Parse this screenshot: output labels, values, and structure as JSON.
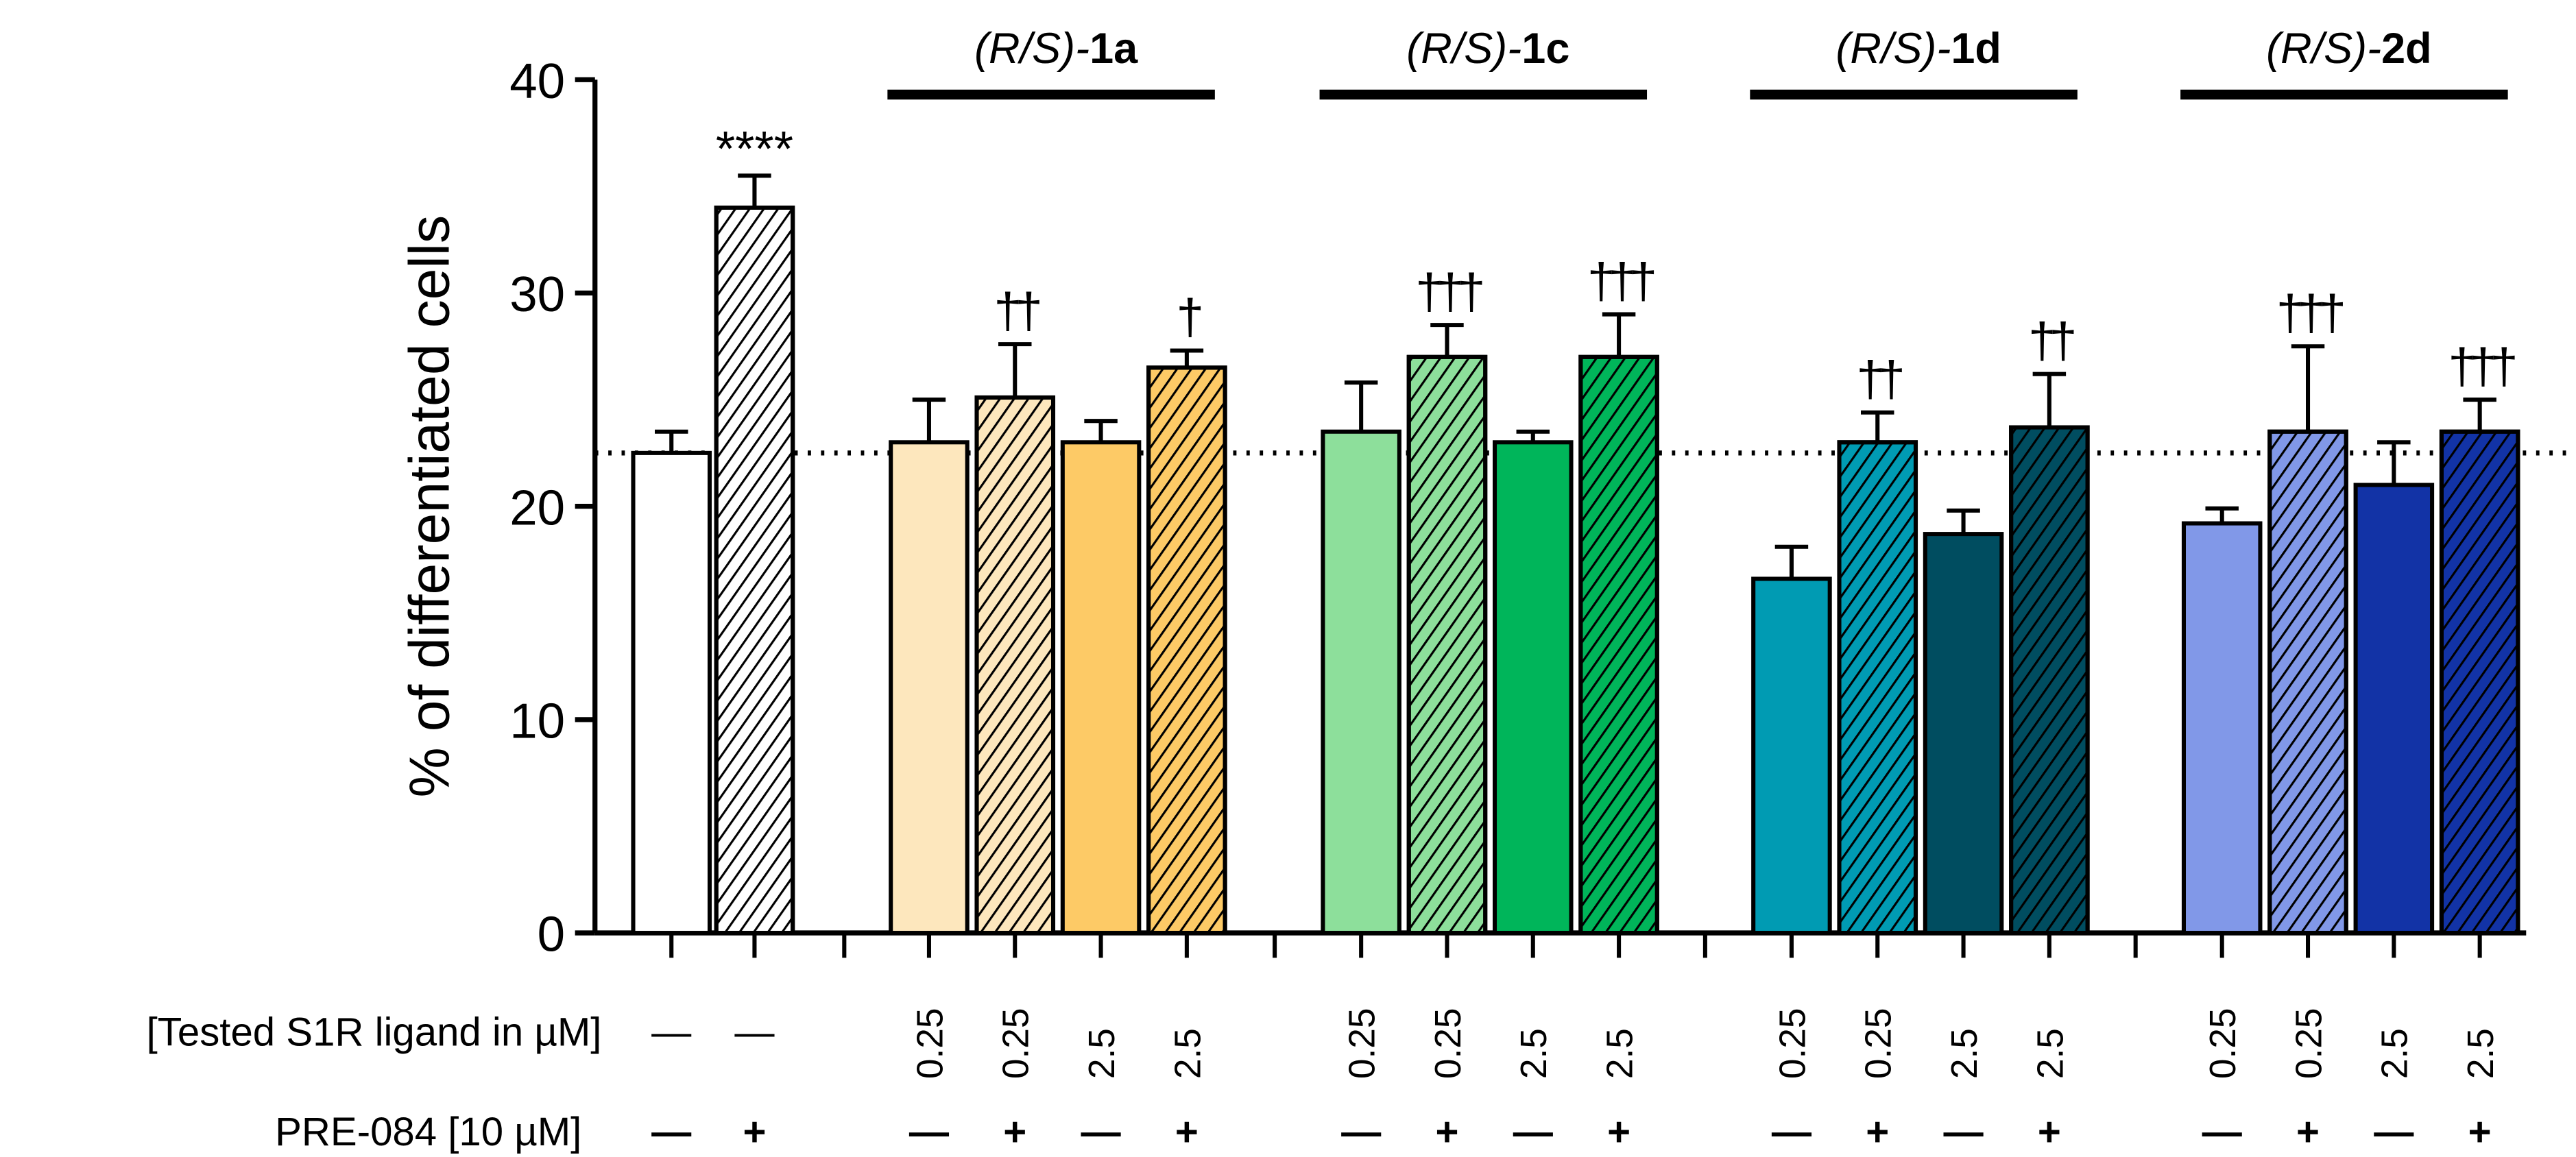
{
  "chart_data": {
    "type": "bar",
    "title": "",
    "xlabel": "",
    "ylabel": "% of differentiated cells",
    "ylim": [
      0,
      40
    ],
    "yticks": [
      "0",
      "10",
      "20",
      "30",
      "40"
    ],
    "reference_line": 22.5,
    "row_labels": {
      "ligand": "[Tested S1R ligand in µM]",
      "pre": "PRE-084 [10 µM]"
    },
    "groups": [
      {
        "name_prefix": "(R/S)-",
        "name_bold": "",
        "bars": [
          {
            "ligand": "—",
            "pre": "—",
            "value": 22.5,
            "error": 1.0,
            "color": "#ffffff",
            "hatched": false,
            "sig": ""
          },
          {
            "ligand": "—",
            "pre": "+",
            "value": 34.0,
            "error": 1.5,
            "color": "#ffffff",
            "hatched": true,
            "sig": "****"
          }
        ]
      },
      {
        "name_prefix": "(R/S)-",
        "name_bold": "1a",
        "bars": [
          {
            "ligand": "0.25",
            "pre": "—",
            "value": 23.0,
            "error": 2.0,
            "color": "#fde7bd",
            "hatched": false,
            "sig": ""
          },
          {
            "ligand": "0.25",
            "pre": "+",
            "value": 25.1,
            "error": 2.5,
            "color": "#fde7bd",
            "hatched": true,
            "sig": "††"
          },
          {
            "ligand": "2.5",
            "pre": "—",
            "value": 23.0,
            "error": 1.0,
            "color": "#fdca66",
            "hatched": false,
            "sig": ""
          },
          {
            "ligand": "2.5",
            "pre": "+",
            "value": 26.5,
            "error": 0.8,
            "color": "#fdca66",
            "hatched": true,
            "sig": "†"
          }
        ]
      },
      {
        "name_prefix": "(R/S)-",
        "name_bold": "1c",
        "bars": [
          {
            "ligand": "0.25",
            "pre": "—",
            "value": 23.5,
            "error": 2.3,
            "color": "#8ddf9b",
            "hatched": false,
            "sig": ""
          },
          {
            "ligand": "0.25",
            "pre": "+",
            "value": 27.0,
            "error": 1.5,
            "color": "#8ddf9b",
            "hatched": true,
            "sig": "†††"
          },
          {
            "ligand": "2.5",
            "pre": "—",
            "value": 23.0,
            "error": 0.5,
            "color": "#00b55a",
            "hatched": false,
            "sig": ""
          },
          {
            "ligand": "2.5",
            "pre": "+",
            "value": 27.0,
            "error": 2.0,
            "color": "#00b55a",
            "hatched": true,
            "sig": "†††"
          }
        ]
      },
      {
        "name_prefix": "(R/S)-",
        "name_bold": "1d",
        "bars": [
          {
            "ligand": "0.25",
            "pre": "—",
            "value": 16.6,
            "error": 1.5,
            "color": "#009bb3",
            "hatched": false,
            "sig": ""
          },
          {
            "ligand": "0.25",
            "pre": "+",
            "value": 23.0,
            "error": 1.4,
            "color": "#009bb3",
            "hatched": true,
            "sig": "††"
          },
          {
            "ligand": "2.5",
            "pre": "—",
            "value": 18.7,
            "error": 1.1,
            "color": "#004d60",
            "hatched": false,
            "sig": ""
          },
          {
            "ligand": "2.5",
            "pre": "+",
            "value": 23.7,
            "error": 2.5,
            "color": "#004d60",
            "hatched": true,
            "sig": "††"
          }
        ]
      },
      {
        "name_prefix": "(R/S)-",
        "name_bold": "2d",
        "bars": [
          {
            "ligand": "0.25",
            "pre": "—",
            "value": 19.2,
            "error": 0.7,
            "color": "#8198e8",
            "hatched": false,
            "sig": ""
          },
          {
            "ligand": "0.25",
            "pre": "+",
            "value": 23.5,
            "error": 4.0,
            "color": "#8198e8",
            "hatched": true,
            "sig": "†††"
          },
          {
            "ligand": "2.5",
            "pre": "—",
            "value": 21.0,
            "error": 2.0,
            "color": "#1233a6",
            "hatched": false,
            "sig": ""
          },
          {
            "ligand": "2.5",
            "pre": "+",
            "value": 23.5,
            "error": 1.5,
            "color": "#1233a6",
            "hatched": true,
            "sig": "†††"
          }
        ]
      }
    ]
  }
}
